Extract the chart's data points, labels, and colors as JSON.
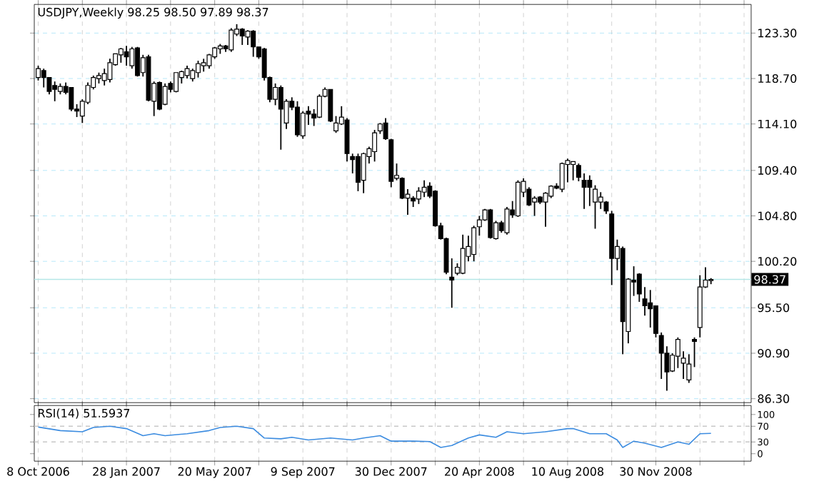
{
  "chart_data": [
    {
      "type": "candlestick",
      "title": "USDJPY,Weekly  98.25 98.50 97.89 98.37",
      "x": [
        "2006-10-08",
        "2006-10-15",
        "2006-10-22",
        "2006-10-29",
        "2006-11-05",
        "2006-11-12",
        "2006-11-19",
        "2006-11-26",
        "2006-12-03",
        "2006-12-10",
        "2006-12-17",
        "2006-12-24",
        "2006-12-31",
        "2007-01-07",
        "2007-01-14",
        "2007-01-21",
        "2007-01-28",
        "2007-02-04",
        "2007-02-11",
        "2007-02-18",
        "2007-02-25",
        "2007-03-04",
        "2007-03-11",
        "2007-03-18",
        "2007-03-25",
        "2007-04-01",
        "2007-04-08",
        "2007-04-15",
        "2007-04-22",
        "2007-04-29",
        "2007-05-06",
        "2007-05-13",
        "2007-05-20",
        "2007-05-27",
        "2007-06-03",
        "2007-06-10",
        "2007-06-17",
        "2007-06-24",
        "2007-07-01",
        "2007-07-08",
        "2007-07-15",
        "2007-07-22",
        "2007-07-29",
        "2007-08-05",
        "2007-08-12",
        "2007-08-19",
        "2007-08-26",
        "2007-09-02",
        "2007-09-09",
        "2007-09-16",
        "2007-09-23",
        "2007-09-30",
        "2007-10-07",
        "2007-10-14",
        "2007-10-21",
        "2007-10-28",
        "2007-11-04",
        "2007-11-11",
        "2007-11-18",
        "2007-11-25",
        "2007-12-02",
        "2007-12-09",
        "2007-12-16",
        "2007-12-23",
        "2007-12-30",
        "2008-01-06",
        "2008-01-13",
        "2008-01-20",
        "2008-01-27",
        "2008-02-03",
        "2008-02-10",
        "2008-02-17",
        "2008-02-24",
        "2008-03-02",
        "2008-03-09",
        "2008-03-16",
        "2008-03-23",
        "2008-03-30",
        "2008-04-06",
        "2008-04-13",
        "2008-04-20",
        "2008-04-27",
        "2008-05-04",
        "2008-05-11",
        "2008-05-18",
        "2008-05-25",
        "2008-06-01",
        "2008-06-08",
        "2008-06-15",
        "2008-06-22",
        "2008-06-29",
        "2008-07-06",
        "2008-07-13",
        "2008-07-20",
        "2008-07-27",
        "2008-08-03",
        "2008-08-10",
        "2008-08-17",
        "2008-08-24",
        "2008-08-31",
        "2008-09-07",
        "2008-09-14",
        "2008-09-21",
        "2008-09-28",
        "2008-10-05",
        "2008-10-12",
        "2008-10-19",
        "2008-10-26",
        "2008-11-02",
        "2008-11-09",
        "2008-11-16",
        "2008-11-23",
        "2008-11-30",
        "2008-12-07",
        "2008-12-14",
        "2008-12-21",
        "2008-12-28",
        "2009-01-04",
        "2009-01-11",
        "2009-01-18",
        "2009-01-25",
        "2009-02-01",
        "2009-02-08"
      ],
      "ohlc": [
        [
          118.8,
          120.0,
          118.5,
          119.7
        ],
        [
          119.5,
          119.7,
          117.8,
          118.8
        ],
        [
          118.8,
          118.8,
          117.1,
          117.4
        ],
        [
          118.0,
          118.4,
          116.4,
          117.6
        ],
        [
          117.4,
          118.2,
          117.1,
          117.9
        ],
        [
          117.9,
          118.3,
          117.1,
          117.3
        ],
        [
          117.8,
          117.8,
          115.4,
          115.6
        ],
        [
          115.6,
          116.1,
          114.8,
          115.4
        ],
        [
          114.9,
          116.6,
          114.2,
          116.4
        ],
        [
          116.3,
          118.3,
          116.1,
          118.0
        ],
        [
          117.8,
          119.0,
          117.6,
          118.8
        ],
        [
          118.7,
          119.3,
          118.2,
          119.0
        ],
        [
          118.5,
          119.7,
          118.0,
          119.2
        ],
        [
          118.6,
          120.7,
          118.3,
          120.3
        ],
        [
          120.1,
          121.2,
          120.0,
          121.2
        ],
        [
          121.1,
          121.8,
          120.3,
          121.7
        ],
        [
          121.4,
          122.0,
          120.0,
          120.9
        ],
        [
          120.0,
          121.9,
          119.7,
          121.7
        ],
        [
          121.8,
          121.9,
          118.9,
          119.0
        ],
        [
          119.3,
          121.1,
          118.9,
          120.8
        ],
        [
          120.9,
          121.1,
          116.4,
          116.5
        ],
        [
          116.4,
          118.4,
          114.9,
          118.2
        ],
        [
          118.3,
          118.4,
          115.5,
          115.6
        ],
        [
          116.1,
          118.2,
          116.0,
          117.9
        ],
        [
          118.2,
          118.4,
          117.3,
          117.6
        ],
        [
          117.4,
          119.3,
          117.3,
          119.3
        ],
        [
          118.8,
          119.5,
          118.2,
          119.4
        ],
        [
          119.0,
          120.0,
          118.7,
          119.7
        ],
        [
          118.7,
          119.7,
          118.4,
          119.5
        ],
        [
          119.3,
          120.5,
          118.8,
          120.2
        ],
        [
          120.0,
          120.7,
          119.4,
          120.3
        ],
        [
          120.0,
          121.2,
          119.7,
          121.1
        ],
        [
          120.9,
          121.9,
          120.7,
          121.8
        ],
        [
          121.7,
          122.2,
          121.2,
          122.0
        ],
        [
          122.0,
          122.1,
          121.4,
          121.7
        ],
        [
          121.6,
          123.8,
          121.4,
          123.6
        ],
        [
          123.2,
          124.2,
          123.0,
          123.7
        ],
        [
          123.7,
          123.8,
          122.1,
          123.0
        ],
        [
          122.9,
          123.6,
          122.1,
          123.5
        ],
        [
          123.5,
          123.6,
          120.9,
          121.9
        ],
        [
          121.9,
          121.9,
          120.7,
          120.9
        ],
        [
          121.7,
          121.8,
          118.5,
          118.8
        ],
        [
          118.8,
          118.9,
          116.3,
          116.6
        ],
        [
          116.6,
          118.2,
          116.0,
          117.8
        ],
        [
          117.8,
          118.0,
          111.5,
          115.6
        ],
        [
          114.2,
          116.6,
          113.6,
          116.4
        ],
        [
          116.4,
          116.8,
          115.5,
          115.8
        ],
        [
          115.8,
          116.4,
          112.8,
          113.0
        ],
        [
          112.9,
          115.4,
          112.6,
          115.2
        ],
        [
          115.4,
          115.9,
          114.0,
          115.1
        ],
        [
          115.1,
          115.6,
          113.9,
          114.7
        ],
        [
          114.8,
          117.1,
          114.7,
          116.9
        ],
        [
          116.9,
          117.8,
          116.8,
          117.6
        ],
        [
          117.6,
          117.6,
          114.3,
          114.4
        ],
        [
          113.4,
          114.9,
          113.2,
          114.2
        ],
        [
          114.1,
          115.9,
          114.0,
          114.8
        ],
        [
          114.5,
          114.7,
          110.3,
          111.1
        ],
        [
          110.8,
          111.1,
          109.1,
          110.5
        ],
        [
          110.8,
          111.1,
          107.3,
          108.2
        ],
        [
          108.4,
          111.2,
          107.1,
          111.1
        ],
        [
          110.8,
          111.8,
          110.1,
          111.6
        ],
        [
          111.3,
          113.5,
          110.3,
          113.2
        ],
        [
          113.4,
          114.2,
          113.1,
          114.1
        ],
        [
          114.2,
          114.7,
          112.5,
          112.6
        ],
        [
          112.5,
          112.6,
          107.7,
          108.3
        ],
        [
          108.6,
          110.1,
          108.4,
          108.9
        ],
        [
          108.6,
          108.7,
          106.5,
          106.6
        ],
        [
          106.6,
          107.5,
          104.9,
          107.0
        ],
        [
          106.6,
          106.8,
          105.7,
          106.3
        ],
        [
          106.5,
          107.7,
          106.0,
          107.3
        ],
        [
          107.2,
          108.4,
          106.7,
          107.7
        ],
        [
          107.8,
          108.2,
          106.6,
          106.8
        ],
        [
          107.3,
          107.4,
          103.7,
          103.8
        ],
        [
          103.8,
          104.1,
          102.4,
          102.5
        ],
        [
          102.5,
          102.6,
          98.9,
          99.1
        ],
        [
          98.6,
          100.5,
          95.5,
          98.3
        ],
        [
          99.0,
          100.0,
          98.8,
          99.6
        ],
        [
          99.0,
          102.9,
          98.9,
          101.5
        ],
        [
          100.7,
          102.8,
          100.2,
          101.7
        ],
        [
          100.9,
          103.8,
          100.2,
          103.6
        ],
        [
          103.7,
          104.8,
          102.8,
          104.4
        ],
        [
          104.4,
          105.5,
          104.3,
          105.4
        ],
        [
          105.4,
          105.5,
          102.5,
          102.6
        ],
        [
          102.5,
          104.3,
          102.4,
          104.1
        ],
        [
          104.1,
          104.3,
          103.1,
          103.3
        ],
        [
          103.1,
          105.7,
          102.9,
          105.5
        ],
        [
          105.4,
          106.3,
          104.6,
          104.9
        ],
        [
          104.8,
          108.4,
          104.7,
          108.2
        ],
        [
          107.2,
          108.6,
          106.7,
          108.3
        ],
        [
          107.5,
          107.7,
          105.8,
          105.9
        ],
        [
          106.2,
          106.8,
          104.8,
          106.6
        ],
        [
          106.7,
          106.8,
          106.0,
          106.2
        ],
        [
          106.2,
          107.2,
          103.7,
          107.1
        ],
        [
          106.8,
          107.9,
          106.6,
          107.8
        ],
        [
          107.8,
          108.1,
          107.5,
          107.6
        ],
        [
          107.5,
          110.2,
          107.2,
          110.1
        ],
        [
          110.0,
          110.6,
          108.2,
          110.4
        ],
        [
          110.0,
          110.3,
          108.4,
          110.3
        ],
        [
          109.9,
          110.1,
          108.3,
          108.7
        ],
        [
          108.4,
          109.1,
          105.5,
          107.7
        ],
        [
          108.4,
          108.9,
          105.8,
          107.7
        ],
        [
          106.2,
          107.9,
          103.5,
          107.5
        ],
        [
          106.2,
          107.2,
          105.5,
          106.7
        ],
        [
          106.2,
          106.3,
          105.0,
          105.3
        ],
        [
          105.0,
          105.3,
          97.8,
          100.5
        ],
        [
          100.5,
          102.4,
          99.3,
          101.7
        ],
        [
          101.5,
          101.7,
          90.8,
          94.1
        ],
        [
          93.1,
          98.5,
          91.9,
          98.4
        ],
        [
          98.3,
          99.7,
          96.7,
          98.1
        ],
        [
          98.9,
          99.0,
          96.1,
          96.9
        ],
        [
          96.4,
          97.6,
          94.7,
          95.7
        ],
        [
          96.0,
          97.3,
          93.5,
          95.4
        ],
        [
          95.7,
          95.7,
          92.5,
          92.9
        ],
        [
          92.7,
          93.0,
          88.3,
          90.9
        ],
        [
          90.9,
          91.6,
          87.1,
          89.0
        ],
        [
          89.1,
          90.9,
          89.0,
          90.7
        ],
        [
          90.6,
          92.5,
          89.4,
          92.3
        ],
        [
          89.9,
          91.1,
          88.3,
          90.4
        ],
        [
          88.2,
          90.8,
          87.9,
          89.8
        ],
        [
          92.3,
          92.5,
          89.5,
          92.1
        ],
        [
          93.5,
          98.8,
          92.5,
          97.6
        ],
        [
          97.6,
          99.6,
          97.5,
          98.3
        ],
        [
          98.25,
          98.5,
          97.89,
          98.37
        ]
      ],
      "xlim": [
        "2006-10-03",
        "2009-03-31"
      ],
      "xticks": [
        {
          "value": "2006-10-08",
          "label": "8 Oct 2006"
        },
        {
          "value": "2006-12-03",
          "label": null
        },
        {
          "value": "2007-01-28",
          "label": "28 Jan 2007"
        },
        {
          "value": "2007-03-25",
          "label": null
        },
        {
          "value": "2007-05-20",
          "label": "20 May 2007"
        },
        {
          "value": "2007-07-15",
          "label": null
        },
        {
          "value": "2007-09-09",
          "label": "9 Sep 2007"
        },
        {
          "value": "2007-11-04",
          "label": null
        },
        {
          "value": "2007-12-30",
          "label": "30 Dec 2007"
        },
        {
          "value": "2008-02-24",
          "label": null
        },
        {
          "value": "2008-04-20",
          "label": "20 Apr 2008"
        },
        {
          "value": "2008-06-15",
          "label": null
        },
        {
          "value": "2008-08-10",
          "label": "10 Aug 2008"
        },
        {
          "value": "2008-10-05",
          "label": null
        },
        {
          "value": "2008-11-30",
          "label": "30 Nov 2008"
        },
        {
          "value": "2009-01-25",
          "label": null
        },
        {
          "value": "2009-03-22",
          "label": null
        }
      ],
      "ylim": [
        85.9,
        126.2
      ],
      "yticks": [
        {
          "value": 86.3,
          "label": "86.30"
        },
        {
          "value": 90.9,
          "label": "90.90"
        },
        {
          "value": 95.5,
          "label": "95.50"
        },
        {
          "value": 100.2,
          "label": "100.20"
        },
        {
          "value": 104.8,
          "label": "104.80"
        },
        {
          "value": 109.4,
          "label": "109.40"
        },
        {
          "value": 114.1,
          "label": "114.10"
        },
        {
          "value": 118.7,
          "label": "118.70"
        },
        {
          "value": 123.3,
          "label": "123.30"
        }
      ],
      "ref_lines": [
        {
          "axis": "y",
          "value": 98.37,
          "label": "98.37",
          "color": "#b4e6e6"
        }
      ],
      "grid": true
    },
    {
      "type": "line",
      "title": "RSI(14) 51.5937",
      "x": [
        "2006-10-08",
        "2006-11-05",
        "2006-12-03",
        "2006-12-17",
        "2007-01-07",
        "2007-01-28",
        "2007-02-18",
        "2007-03-04",
        "2007-03-18",
        "2007-04-15",
        "2007-05-13",
        "2007-05-27",
        "2007-06-17",
        "2007-07-08",
        "2007-07-22",
        "2007-08-12",
        "2007-08-26",
        "2007-09-16",
        "2007-10-14",
        "2007-11-11",
        "2007-11-25",
        "2007-12-16",
        "2007-12-30",
        "2008-01-27",
        "2008-02-17",
        "2008-03-02",
        "2008-03-16",
        "2008-04-06",
        "2008-04-20",
        "2008-05-11",
        "2008-05-25",
        "2008-06-15",
        "2008-07-13",
        "2008-08-10",
        "2008-08-17",
        "2008-09-07",
        "2008-09-28",
        "2008-10-12",
        "2008-10-19",
        "2008-11-02",
        "2008-11-16",
        "2008-12-07",
        "2008-12-28",
        "2009-01-11",
        "2009-01-25",
        "2009-02-08"
      ],
      "series": [
        {
          "color": "#3c8ce0",
          "values": [
            68,
            59,
            56,
            67,
            70,
            64,
            46,
            51,
            46,
            51,
            59,
            67,
            70,
            64,
            40,
            38,
            42,
            35,
            40,
            35,
            40,
            46,
            32,
            32,
            31,
            16,
            21,
            40,
            48,
            42,
            56,
            51,
            56,
            64,
            64,
            51,
            51,
            35,
            16,
            32,
            27,
            16,
            30,
            24,
            51,
            52
          ]
        }
      ],
      "xlim": [
        "2006-10-03",
        "2009-03-31"
      ],
      "xticks": [
        {
          "value": "2006-10-08",
          "label": null
        },
        {
          "value": "2006-12-03",
          "label": null
        },
        {
          "value": "2007-01-28",
          "label": null
        },
        {
          "value": "2007-03-25",
          "label": null
        },
        {
          "value": "2007-05-20",
          "label": null
        },
        {
          "value": "2007-07-15",
          "label": null
        },
        {
          "value": "2007-09-09",
          "label": null
        },
        {
          "value": "2007-11-04",
          "label": null
        },
        {
          "value": "2007-12-30",
          "label": null
        },
        {
          "value": "2008-02-24",
          "label": null
        },
        {
          "value": "2008-04-20",
          "label": null
        },
        {
          "value": "2008-06-15",
          "label": null
        },
        {
          "value": "2008-08-10",
          "label": null
        },
        {
          "value": "2008-10-05",
          "label": null
        },
        {
          "value": "2008-11-30",
          "label": null
        },
        {
          "value": "2009-01-25",
          "label": null
        },
        {
          "value": "2009-03-22",
          "label": null
        }
      ],
      "ylim": [
        -19,
        123
      ],
      "yticks": [
        0,
        30,
        70,
        100
      ],
      "ref_lines": [
        {
          "axis": "y",
          "value": 30,
          "color": "#c8c8c8",
          "line_style": "dashed"
        },
        {
          "axis": "y",
          "value": 70,
          "color": "#c8c8c8",
          "line_style": "dashed"
        }
      ],
      "grid": "x",
      "tick_labels": "y"
    }
  ]
}
